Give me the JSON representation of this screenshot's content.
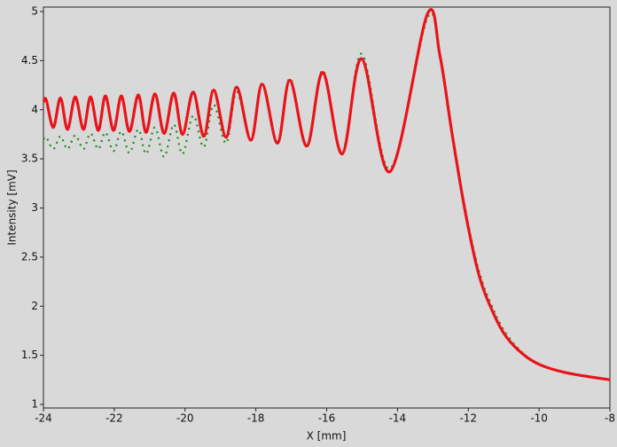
{
  "chart_data": {
    "type": "line",
    "x_label": "X [mm]",
    "y_label": "Intensity [mV]",
    "x": [
      -24,
      -23.92,
      -23.72,
      -23.52,
      -23.32,
      -23.1,
      -22.87,
      -22.67,
      -22.45,
      -22.25,
      -22.02,
      -21.8,
      -21.57,
      -21.32,
      -21.1,
      -20.85,
      -20.59,
      -20.32,
      -20.07,
      -19.77,
      -19.47,
      -19.19,
      -18.84,
      -18.54,
      -18.14,
      -17.82,
      -17.39,
      -17.04,
      -16.56,
      -16.11,
      -15.56,
      -15.01,
      -14.21,
      -13.16,
      -12.8,
      -12.46,
      -12.08,
      -11.7,
      -11.33,
      -10.95,
      -10.45,
      -9.95,
      -9.2,
      -8
    ],
    "series": [
      {
        "color": "#1a8a1a",
        "style": "dotted",
        "values": [
          3.7,
          3.72,
          3.6,
          3.73,
          3.6,
          3.74,
          3.6,
          3.76,
          3.6,
          3.77,
          3.58,
          3.78,
          3.56,
          3.8,
          3.55,
          3.82,
          3.52,
          3.85,
          3.55,
          3.94,
          3.62,
          4.05,
          3.66,
          4.18,
          3.7,
          4.27,
          3.68,
          4.32,
          3.63,
          4.4,
          3.55,
          4.57,
          3.4,
          4.93,
          4.55,
          3.78,
          2.98,
          2.36,
          2.0,
          1.73,
          1.52,
          1.4,
          1.32,
          1.25
        ]
      },
      {
        "color": "#e8141a",
        "style": "solid",
        "values": [
          4.08,
          4.1,
          3.82,
          4.12,
          3.8,
          4.13,
          3.8,
          4.13,
          3.79,
          4.14,
          3.79,
          4.14,
          3.78,
          4.15,
          3.77,
          4.16,
          3.76,
          4.17,
          3.75,
          4.18,
          3.73,
          4.2,
          3.72,
          4.23,
          3.69,
          4.26,
          3.66,
          4.3,
          3.63,
          4.38,
          3.55,
          4.52,
          3.37,
          4.97,
          4.55,
          3.76,
          2.95,
          2.32,
          1.96,
          1.7,
          1.51,
          1.4,
          1.32,
          1.25
        ]
      }
    ],
    "xlim": [
      -24,
      -8
    ],
    "xticks": [
      -24,
      -22,
      -20,
      -18,
      -16,
      -14,
      -12,
      -10,
      -8
    ],
    "ylim": [
      1,
      5
    ],
    "yticks": [
      1,
      1.5,
      2,
      2.5,
      3,
      3.5,
      4,
      4.5,
      5
    ],
    "grid": false
  }
}
